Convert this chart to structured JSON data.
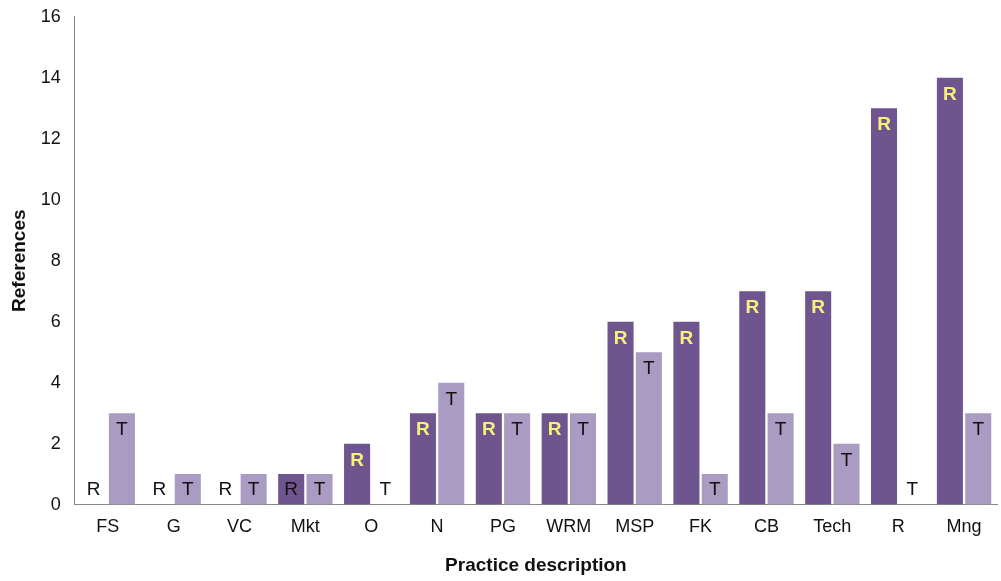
{
  "chart_data": {
    "type": "bar",
    "xlabel": "Practice description",
    "ylabel": "References",
    "categories": [
      "FS",
      "G",
      "VC",
      "Mkt",
      "O",
      "N",
      "PG",
      "WRM",
      "MSP",
      "FK",
      "CB",
      "Tech",
      "R",
      "Mng"
    ],
    "series": [
      {
        "name": "R",
        "color": "#6f5590",
        "values": [
          0,
          0,
          0,
          1,
          2,
          3,
          3,
          3,
          6,
          6,
          7,
          7,
          13,
          14
        ]
      },
      {
        "name": "T",
        "color": "#a99bc2",
        "values": [
          3,
          1,
          1,
          1,
          0,
          4,
          3,
          3,
          5,
          1,
          3,
          2,
          0,
          3
        ]
      }
    ],
    "ylim": [
      0,
      16
    ],
    "yticks": [
      0,
      2,
      4,
      6,
      8,
      10,
      12,
      14,
      16
    ],
    "grid": false,
    "legend": false
  }
}
